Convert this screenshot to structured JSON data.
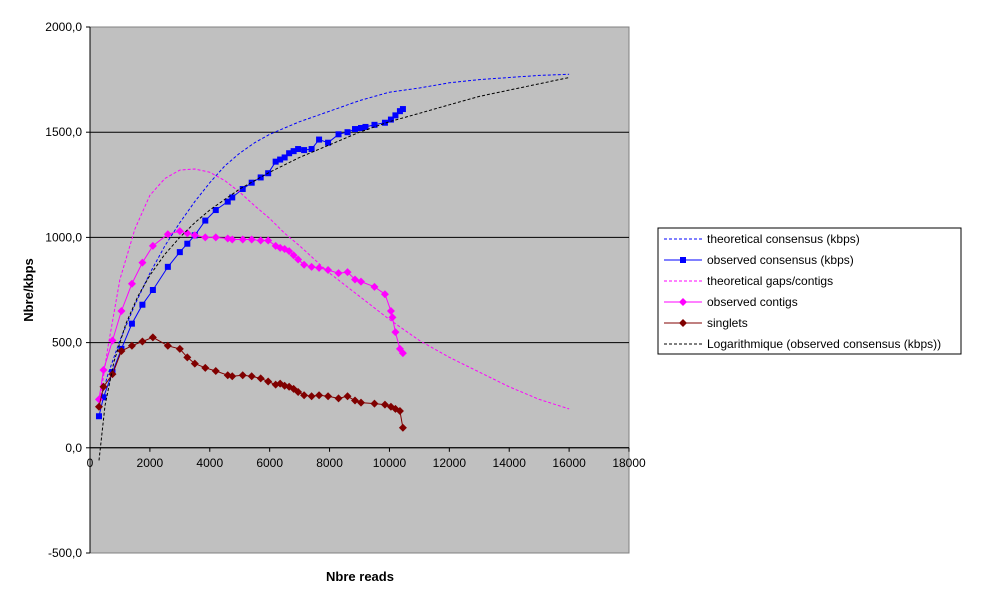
{
  "chart_data": {
    "type": "line",
    "xlabel": "Nbre reads",
    "ylabel": "Nbre/kbps",
    "xlim": [
      0,
      18000
    ],
    "ylim": [
      -500,
      2000
    ],
    "xticks": [
      0,
      2000,
      4000,
      6000,
      8000,
      10000,
      12000,
      14000,
      16000,
      18000
    ],
    "yticks": [
      -500,
      0,
      500,
      1000,
      1500,
      2000
    ],
    "ytick_labels": [
      "-500,0",
      "0,0",
      "500,0",
      "1000,0",
      "1500,0",
      "2000,0"
    ],
    "grid": "horizontal",
    "legend_position": "right",
    "plot_background": "#c0c0c0",
    "series": [
      {
        "name": "theoretical consensus (kbps)",
        "style": "dashed",
        "marker": "none",
        "color": "#0000ff",
        "x": [
          300,
          600,
          1000,
          1500,
          2000,
          2500,
          3000,
          3500,
          4000,
          4500,
          5000,
          5500,
          6000,
          6500,
          7000,
          8000,
          9000,
          10000,
          11000,
          12000,
          13000,
          14000,
          15000,
          16000
        ],
        "y": [
          200,
          350,
          510,
          680,
          830,
          960,
          1070,
          1170,
          1260,
          1340,
          1400,
          1450,
          1490,
          1520,
          1550,
          1600,
          1650,
          1690,
          1710,
          1735,
          1750,
          1760,
          1770,
          1775
        ]
      },
      {
        "name": "observed consensus (kbps)",
        "style": "solid",
        "marker": "square",
        "color": "#0000ff",
        "x": [
          300,
          450,
          750,
          1050,
          1400,
          1750,
          2100,
          2600,
          3000,
          3250,
          3500,
          3850,
          4200,
          4600,
          4750,
          5100,
          5400,
          5700,
          5950,
          6200,
          6350,
          6500,
          6650,
          6800,
          6950,
          7150,
          7400,
          7650,
          7950,
          8300,
          8600,
          8850,
          9050,
          9200,
          9500,
          9850,
          10050,
          10200,
          10350,
          10450
        ],
        "y": [
          150,
          240,
          360,
          470,
          590,
          680,
          750,
          860,
          930,
          970,
          1010,
          1080,
          1130,
          1170,
          1190,
          1230,
          1260,
          1285,
          1305,
          1360,
          1370,
          1380,
          1400,
          1410,
          1420,
          1415,
          1420,
          1465,
          1450,
          1490,
          1500,
          1515,
          1520,
          1525,
          1535,
          1545,
          1560,
          1580,
          1600,
          1610
        ]
      },
      {
        "name": "theoretical gaps/contigs",
        "style": "dashed",
        "marker": "none",
        "color": "#ff00ff",
        "x": [
          300,
          600,
          1000,
          1500,
          2000,
          2500,
          3000,
          3500,
          4000,
          4500,
          5000,
          5500,
          6000,
          6500,
          7000,
          8000,
          9000,
          10000,
          11000,
          12000,
          13000,
          14000,
          15000,
          16000
        ],
        "y": [
          200,
          480,
          800,
          1040,
          1200,
          1280,
          1320,
          1325,
          1310,
          1270,
          1215,
          1150,
          1090,
          1020,
          960,
          830,
          720,
          610,
          510,
          430,
          360,
          290,
          230,
          185
        ]
      },
      {
        "name": "observed contigs",
        "style": "solid",
        "marker": "diamond",
        "color": "#ff00ff",
        "x": [
          300,
          450,
          750,
          1050,
          1400,
          1750,
          2100,
          2600,
          3000,
          3250,
          3500,
          3850,
          4200,
          4600,
          4750,
          5100,
          5400,
          5700,
          5950,
          6200,
          6350,
          6500,
          6650,
          6800,
          6950,
          7150,
          7400,
          7650,
          7950,
          8300,
          8600,
          8850,
          9050,
          9500,
          9850,
          10050,
          10100,
          10200,
          10350,
          10450
        ],
        "y": [
          230,
          370,
          510,
          650,
          780,
          880,
          960,
          1015,
          1030,
          1020,
          1010,
          1000,
          1000,
          995,
          990,
          990,
          990,
          985,
          985,
          960,
          950,
          945,
          935,
          915,
          895,
          870,
          860,
          855,
          845,
          830,
          835,
          800,
          790,
          765,
          730,
          650,
          620,
          550,
          470,
          450
        ]
      },
      {
        "name": "singlets",
        "style": "solid",
        "marker": "diamond",
        "color": "#800000",
        "x": [
          300,
          450,
          750,
          1050,
          1400,
          1750,
          2100,
          2600,
          3000,
          3250,
          3500,
          3850,
          4200,
          4600,
          4750,
          5100,
          5400,
          5700,
          5950,
          6200,
          6350,
          6500,
          6650,
          6800,
          6950,
          7150,
          7400,
          7650,
          7950,
          8300,
          8600,
          8850,
          9050,
          9500,
          9850,
          10050,
          10200,
          10350,
          10450
        ],
        "y": [
          195,
          290,
          350,
          460,
          485,
          505,
          525,
          485,
          470,
          430,
          400,
          380,
          365,
          345,
          340,
          345,
          340,
          330,
          315,
          300,
          305,
          295,
          290,
          280,
          265,
          250,
          245,
          250,
          245,
          235,
          245,
          225,
          215,
          210,
          205,
          195,
          185,
          175,
          95
        ]
      },
      {
        "name": "Logarithmique (observed consensus (kbps))",
        "style": "dashed",
        "marker": "none",
        "color": "#000000",
        "x": [
          300,
          500,
          800,
          1200,
          1600,
          2000,
          2500,
          3000,
          3500,
          4000,
          5000,
          6000,
          7000,
          8000,
          9000,
          10000,
          11000,
          12000,
          13000,
          14000,
          15000,
          16000
        ],
        "y": [
          -60,
          200,
          410,
          590,
          720,
          820,
          920,
          1000,
          1070,
          1130,
          1230,
          1310,
          1380,
          1440,
          1500,
          1550,
          1590,
          1630,
          1670,
          1700,
          1730,
          1760
        ]
      }
    ]
  }
}
